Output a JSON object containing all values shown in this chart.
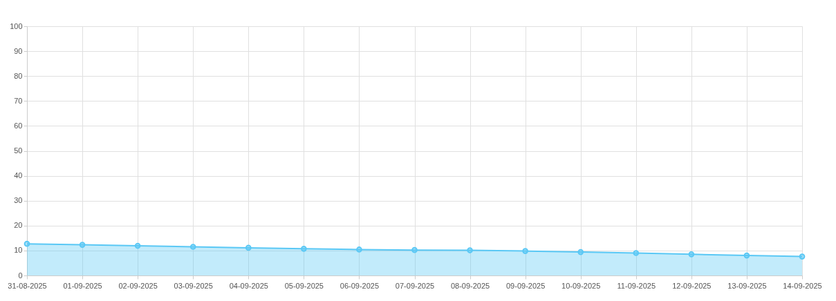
{
  "chart_data": {
    "type": "area",
    "categories": [
      "31-08-2025",
      "01-09-2025",
      "02-09-2025",
      "03-09-2025",
      "04-09-2025",
      "05-09-2025",
      "06-09-2025",
      "07-09-2025",
      "08-09-2025",
      "09-09-2025",
      "10-09-2025",
      "11-09-2025",
      "12-09-2025",
      "13-09-2025",
      "14-09-2025"
    ],
    "series": [
      {
        "color": "#5ac8f5",
        "values": [
          12.7,
          12.3,
          11.9,
          11.5,
          11.1,
          10.7,
          10.4,
          10.2,
          10.1,
          9.8,
          9.4,
          9.0,
          8.5,
          8.0,
          7.6
        ]
      }
    ],
    "ylim": [
      0,
      100
    ],
    "yticks": [
      0,
      10,
      20,
      30,
      40,
      50,
      60,
      70,
      80,
      90,
      100
    ],
    "grid": true,
    "marker": "circle"
  }
}
